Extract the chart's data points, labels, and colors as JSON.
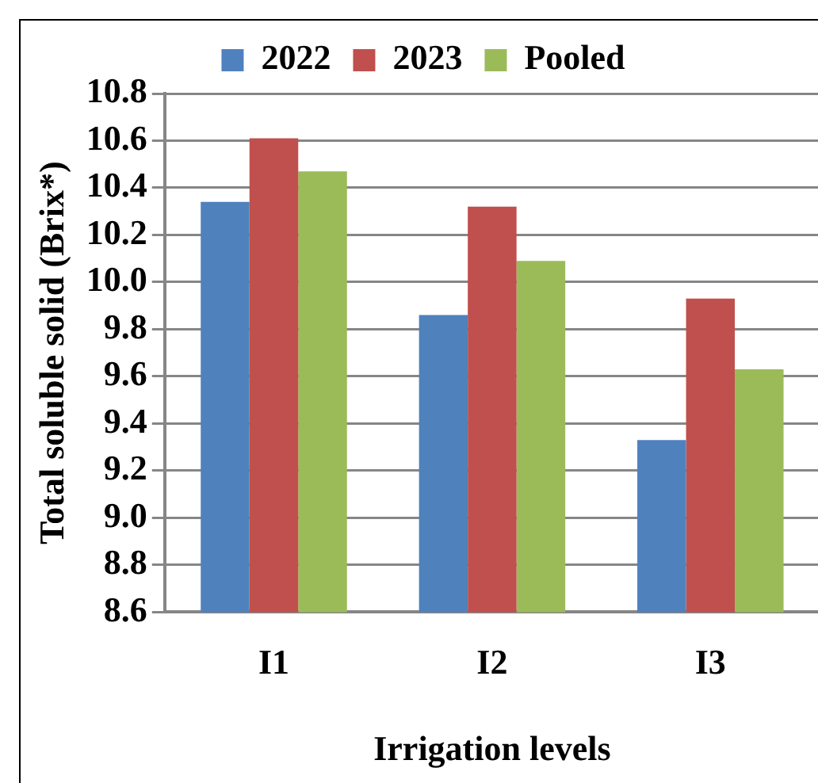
{
  "chart_data": {
    "type": "bar",
    "xlabel": "Irrigation levels",
    "ylabel": "Total soluble solid (Brix*)",
    "categories": [
      "I1",
      "I2",
      "I3"
    ],
    "series": [
      {
        "name": "2022",
        "color": "#4f81bd",
        "values": [
          10.34,
          9.86,
          9.33
        ]
      },
      {
        "name": "2023",
        "color": "#c0504d",
        "values": [
          10.61,
          10.32,
          9.93
        ]
      },
      {
        "name": "Pooled",
        "color": "#9bbb59",
        "values": [
          10.47,
          10.09,
          9.63
        ]
      }
    ],
    "ylim": [
      8.6,
      10.8
    ],
    "yticks": [
      8.6,
      8.8,
      {
        "value": 9,
        "label": "9.0"
      },
      9.2,
      9.4,
      9.6,
      9.8,
      {
        "value": 10,
        "label": "10.0"
      },
      10.2,
      10.4,
      10.6,
      10.8
    ],
    "grid": "y",
    "legend": "top"
  }
}
